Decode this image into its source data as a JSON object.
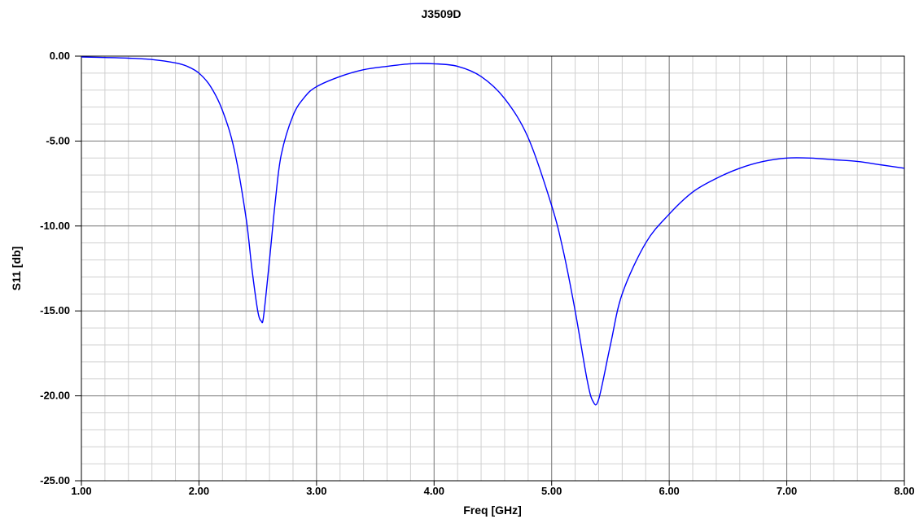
{
  "chart_data": {
    "type": "line",
    "title": "J3509D",
    "xlabel": "Freq [GHz]",
    "ylabel": "S11 [db]",
    "xlim": [
      1.0,
      8.0
    ],
    "ylim": [
      -25.0,
      0.0
    ],
    "x_ticks": [
      "1.00",
      "2.00",
      "3.00",
      "4.00",
      "5.00",
      "6.00",
      "7.00",
      "8.00"
    ],
    "y_ticks": [
      "0.00",
      "-5.00",
      "-10.00",
      "-15.00",
      "-20.00",
      "-25.00"
    ],
    "grid": true,
    "line_color": "#0000ff",
    "series": [
      {
        "x": [
          1.0,
          1.2,
          1.4,
          1.6,
          1.8,
          1.9,
          2.0,
          2.1,
          2.2,
          2.3,
          2.4,
          2.45,
          2.5,
          2.53,
          2.55,
          2.6,
          2.65,
          2.7,
          2.8,
          2.9,
          3.0,
          3.2,
          3.4,
          3.6,
          3.8,
          4.0,
          4.2,
          4.4,
          4.6,
          4.8,
          5.0,
          5.1,
          5.2,
          5.3,
          5.35,
          5.4,
          5.5,
          5.6,
          5.8,
          6.0,
          6.2,
          6.4,
          6.6,
          6.8,
          7.0,
          7.2,
          7.4,
          7.6,
          7.8,
          8.0
        ],
        "y": [
          -0.05,
          -0.08,
          -0.12,
          -0.2,
          -0.4,
          -0.6,
          -1.0,
          -1.8,
          -3.2,
          -5.5,
          -9.5,
          -12.5,
          -15.0,
          -15.6,
          -15.3,
          -12.0,
          -8.5,
          -5.8,
          -3.5,
          -2.4,
          -1.8,
          -1.2,
          -0.8,
          -0.6,
          -0.45,
          -0.45,
          -0.6,
          -1.2,
          -2.5,
          -4.8,
          -8.8,
          -11.5,
          -15.0,
          -19.0,
          -20.3,
          -20.2,
          -17.0,
          -14.0,
          -11.0,
          -9.3,
          -8.0,
          -7.2,
          -6.6,
          -6.2,
          -6.0,
          -6.0,
          -6.1,
          -6.2,
          -6.4,
          -6.6
        ]
      }
    ]
  }
}
